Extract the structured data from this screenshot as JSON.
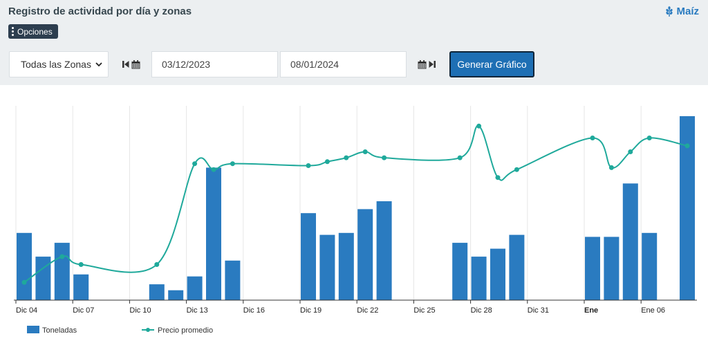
{
  "header": {
    "title": "Registro de actividad por día y zonas",
    "crop_label": "Maíz",
    "options_label": "Opciones"
  },
  "filters": {
    "zone_select": "Todas las Zonas",
    "start_date": "03/12/2023",
    "end_date": "08/01/2024",
    "generate_label": "Generar Gráfico"
  },
  "colors": {
    "bar": "#2a7bc0",
    "line": "#1fa99b",
    "header_bg": "#eceff1",
    "button": "#1e6fb4"
  },
  "chart_data": {
    "type": "bar",
    "x_tick_labels": [
      "Dic 04",
      "Dic 07",
      "Dic 10",
      "Dic 13",
      "Dic 16",
      "Dic 19",
      "Dic 22",
      "Dic 25",
      "Dic 28",
      "Dic 31",
      "Ene",
      "Ene 06"
    ],
    "x_tick_bold": "Ene",
    "grid": true,
    "legend_position": "bottom-left",
    "series": [
      {
        "name": "Toneladas",
        "type": "bar",
        "values": [
          {
            "date": "Dic 04",
            "value": 34
          },
          {
            "date": "Dic 05",
            "value": 22
          },
          {
            "date": "Dic 06",
            "value": 29
          },
          {
            "date": "Dic 07",
            "value": 13
          },
          {
            "date": "Dic 11",
            "value": 8
          },
          {
            "date": "Dic 12",
            "value": 5
          },
          {
            "date": "Dic 13",
            "value": 12
          },
          {
            "date": "Dic 14",
            "value": 67
          },
          {
            "date": "Dic 15",
            "value": 20
          },
          {
            "date": "Dic 19",
            "value": 44
          },
          {
            "date": "Dic 20",
            "value": 33
          },
          {
            "date": "Dic 21",
            "value": 34
          },
          {
            "date": "Dic 22",
            "value": 46
          },
          {
            "date": "Dic 23",
            "value": 50
          },
          {
            "date": "Dic 27",
            "value": 29
          },
          {
            "date": "Dic 28",
            "value": 22
          },
          {
            "date": "Dic 29",
            "value": 26
          },
          {
            "date": "Dic 30",
            "value": 33
          },
          {
            "date": "Ene 03",
            "value": 32
          },
          {
            "date": "Ene 04",
            "value": 32
          },
          {
            "date": "Ene 05",
            "value": 59
          },
          {
            "date": "Ene 06",
            "value": 34
          },
          {
            "date": "Ene 08",
            "value": 93
          }
        ]
      },
      {
        "name": "Precio promedio",
        "type": "line",
        "values": [
          {
            "date": "Dic 04",
            "value": 9
          },
          {
            "date": "Dic 06",
            "value": 22
          },
          {
            "date": "Dic 07",
            "value": 18
          },
          {
            "date": "Dic 11",
            "value": 18
          },
          {
            "date": "Dic 13",
            "value": 69
          },
          {
            "date": "Dic 14",
            "value": 66
          },
          {
            "date": "Dic 15",
            "value": 69
          },
          {
            "date": "Dic 19",
            "value": 68
          },
          {
            "date": "Dic 20",
            "value": 70
          },
          {
            "date": "Dic 21",
            "value": 72
          },
          {
            "date": "Dic 22",
            "value": 75
          },
          {
            "date": "Dic 23",
            "value": 72
          },
          {
            "date": "Dic 27",
            "value": 72
          },
          {
            "date": "Dic 28",
            "value": 88
          },
          {
            "date": "Dic 29",
            "value": 62
          },
          {
            "date": "Dic 30",
            "value": 66
          },
          {
            "date": "Ene 03",
            "value": 82
          },
          {
            "date": "Ene 04",
            "value": 67
          },
          {
            "date": "Ene 05",
            "value": 75
          },
          {
            "date": "Ene 06",
            "value": 82
          },
          {
            "date": "Ene 08",
            "value": 78
          }
        ]
      }
    ]
  }
}
